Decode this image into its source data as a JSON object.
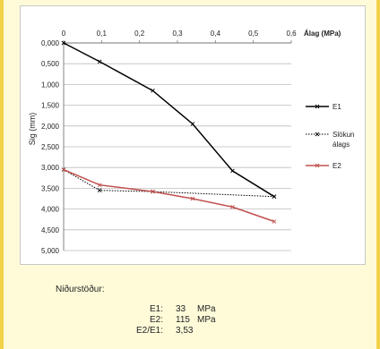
{
  "chart_data": {
    "type": "line",
    "title": "",
    "xlabel": "Álag (MPa)",
    "ylabel": "Sig (mm)",
    "x_ticks": [
      "0",
      "0,1",
      "0,2",
      "0,3",
      "0,4",
      "0,5",
      "0,6"
    ],
    "y_ticks": [
      "0,000",
      "0,500",
      "1,000",
      "1,500",
      "2,000",
      "2,500",
      "3,000",
      "3,500",
      "4,000",
      "4,500",
      "5,000"
    ],
    "xlim": [
      0,
      0.6
    ],
    "ylim": [
      0,
      5
    ],
    "y_inverted": true,
    "x_axis_position": "top",
    "grid": true,
    "legend_position": "right",
    "series": [
      {
        "name": "E1",
        "color": "#000000",
        "style": "solid",
        "x": [
          0,
          0.095,
          0.235,
          0.34,
          0.445,
          0.555
        ],
        "y": [
          0.0,
          0.45,
          1.15,
          1.95,
          3.08,
          3.7
        ]
      },
      {
        "name": "Slökun álags",
        "color": "#000000",
        "style": "dotted",
        "x": [
          0,
          0.095,
          0.235,
          0.555
        ],
        "y": [
          3.05,
          3.55,
          3.58,
          3.7
        ]
      },
      {
        "name": "E2",
        "color": "#c0504d",
        "style": "solid",
        "x": [
          0,
          0.095,
          0.235,
          0.34,
          0.445,
          0.555
        ],
        "y": [
          3.05,
          3.42,
          3.58,
          3.75,
          3.95,
          4.3
        ]
      }
    ]
  },
  "results": {
    "title": "Niðurstöður:",
    "rows": [
      {
        "label": "E1:",
        "value": "33",
        "unit": "MPa"
      },
      {
        "label": "E2:",
        "value": "115",
        "unit": "MPa"
      },
      {
        "label": "E2/E1:",
        "value": "3,53",
        "unit": ""
      }
    ]
  }
}
